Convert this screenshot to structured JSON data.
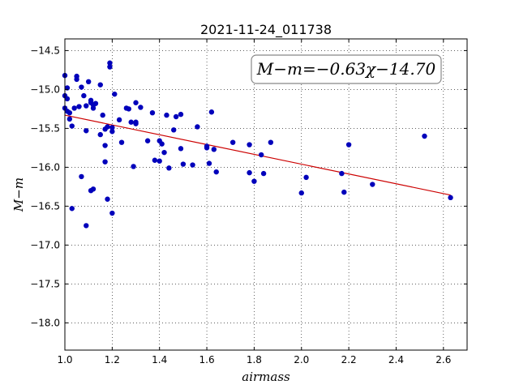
{
  "chart_data": {
    "type": "scatter",
    "title": "2021-11-24_011738",
    "xlabel": "airmass",
    "ylabel": "M−m",
    "xlim": [
      1.0,
      2.7
    ],
    "ylim": [
      -18.35,
      -14.35
    ],
    "y_inverted": true,
    "grid": true,
    "x_ticks": [
      1.0,
      1.2,
      1.4,
      1.6,
      1.8,
      2.0,
      2.2,
      2.4,
      2.6
    ],
    "x_tick_labels": [
      "1.0",
      "1.2",
      "1.4",
      "1.6",
      "1.8",
      "2.0",
      "2.2",
      "2.4",
      "2.6"
    ],
    "y_ticks": [
      -14.5,
      -15.0,
      -15.5,
      -16.0,
      -16.5,
      -17.0,
      -17.5,
      -18.0
    ],
    "y_tick_labels": [
      "−14.5",
      "−15.0",
      "−15.5",
      "−16.0",
      "−16.5",
      "−17.0",
      "−17.5",
      "−18.0"
    ],
    "annotation": "M−m=−0.63χ−14.70",
    "fit": {
      "slope": -0.63,
      "intercept": -14.7,
      "x_range": [
        1.0,
        2.63
      ],
      "color": "#cc0000"
    },
    "point_color": "#0000bb",
    "points": [
      [
        1.0,
        -14.82
      ],
      [
        1.01,
        -14.98
      ],
      [
        1.0,
        -15.08
      ],
      [
        1.01,
        -15.12
      ],
      [
        1.0,
        -15.24
      ],
      [
        1.01,
        -15.28
      ],
      [
        1.02,
        -15.3
      ],
      [
        1.03,
        -15.47
      ],
      [
        1.02,
        -15.38
      ],
      [
        1.04,
        -15.24
      ],
      [
        1.05,
        -14.83
      ],
      [
        1.05,
        -14.87
      ],
      [
        1.06,
        -15.22
      ],
      [
        1.07,
        -14.97
      ],
      [
        1.08,
        -15.08
      ],
      [
        1.09,
        -15.21
      ],
      [
        1.09,
        -15.53
      ],
      [
        1.1,
        -14.9
      ],
      [
        1.11,
        -15.14
      ],
      [
        1.11,
        -15.17
      ],
      [
        1.12,
        -15.2
      ],
      [
        1.12,
        -15.24
      ],
      [
        1.13,
        -15.18
      ],
      [
        1.15,
        -14.94
      ],
      [
        1.15,
        -15.58
      ],
      [
        1.16,
        -15.33
      ],
      [
        1.17,
        -15.51
      ],
      [
        1.17,
        -15.72
      ],
      [
        1.17,
        -15.93
      ],
      [
        1.18,
        -15.48
      ],
      [
        1.19,
        -14.66
      ],
      [
        1.19,
        -14.71
      ],
      [
        1.2,
        -15.49
      ],
      [
        1.2,
        -15.54
      ],
      [
        1.21,
        -15.06
      ],
      [
        1.23,
        -15.39
      ],
      [
        1.24,
        -15.68
      ],
      [
        1.26,
        -15.24
      ],
      [
        1.27,
        -15.25
      ],
      [
        1.28,
        -15.42
      ],
      [
        1.29,
        -15.99
      ],
      [
        1.3,
        -15.17
      ],
      [
        1.3,
        -15.44
      ],
      [
        1.3,
        -15.42
      ],
      [
        1.32,
        -15.23
      ],
      [
        1.35,
        -15.66
      ],
      [
        1.37,
        -15.3
      ],
      [
        1.38,
        -15.91
      ],
      [
        1.4,
        -15.66
      ],
      [
        1.4,
        -15.92
      ],
      [
        1.41,
        -15.7
      ],
      [
        1.42,
        -15.81
      ],
      [
        1.43,
        -15.33
      ],
      [
        1.44,
        -16.01
      ],
      [
        1.46,
        -15.52
      ],
      [
        1.47,
        -15.35
      ],
      [
        1.49,
        -15.32
      ],
      [
        1.49,
        -15.76
      ],
      [
        1.5,
        -15.96
      ],
      [
        1.54,
        -15.97
      ],
      [
        1.56,
        -15.48
      ],
      [
        1.6,
        -15.73
      ],
      [
        1.6,
        -15.75
      ],
      [
        1.61,
        -15.95
      ],
      [
        1.62,
        -15.29
      ],
      [
        1.63,
        -15.77
      ],
      [
        1.64,
        -16.06
      ],
      [
        1.71,
        -15.68
      ],
      [
        1.78,
        -15.71
      ],
      [
        1.78,
        -16.07
      ],
      [
        1.8,
        -16.18
      ],
      [
        1.83,
        -15.84
      ],
      [
        1.84,
        -16.08
      ],
      [
        1.87,
        -15.68
      ],
      [
        2.0,
        -16.33
      ],
      [
        2.02,
        -16.13
      ],
      [
        2.17,
        -16.08
      ],
      [
        2.18,
        -16.32
      ],
      [
        2.2,
        -15.71
      ],
      [
        2.3,
        -16.22
      ],
      [
        2.52,
        -15.6
      ],
      [
        2.63,
        -16.39
      ],
      [
        1.07,
        -16.12
      ],
      [
        1.11,
        -16.3
      ],
      [
        1.12,
        -16.28
      ],
      [
        1.18,
        -16.41
      ],
      [
        1.2,
        -16.59
      ],
      [
        1.03,
        -16.53
      ],
      [
        1.09,
        -16.75
      ]
    ]
  }
}
